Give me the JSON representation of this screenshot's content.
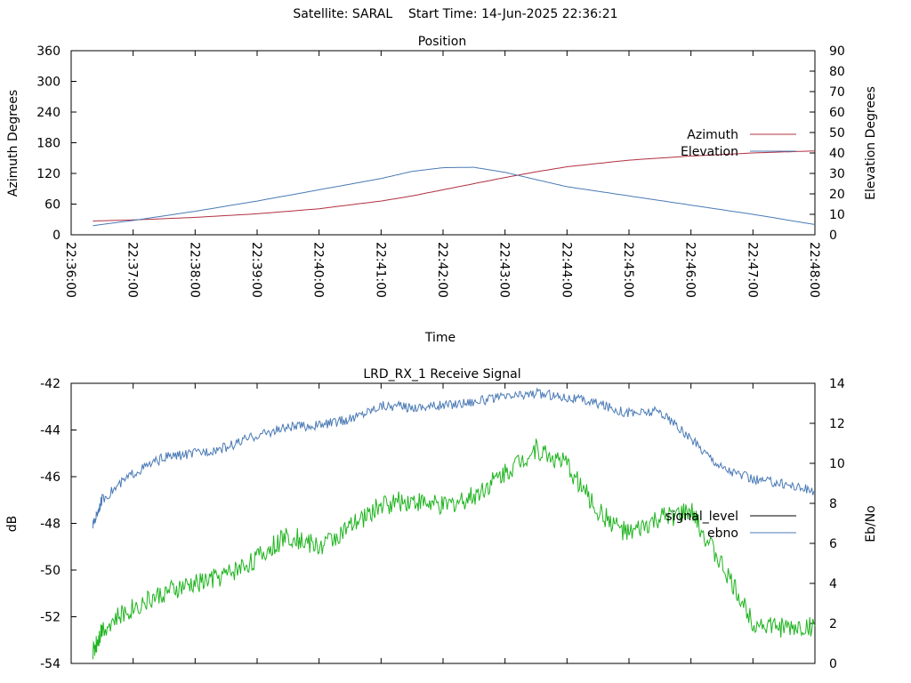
{
  "header": {
    "satellite": "Satellite: SARAL",
    "start_time": "Start Time: 14-Jun-2025 22:36:21"
  },
  "colors": {
    "azimuth": "#b03040",
    "elevation": "#4a7ab5",
    "signal_level": "#1fb41f",
    "signal_level_legend": "#000000",
    "ebno": "#4a7ab5",
    "axis": "#000000"
  },
  "chart_data": [
    {
      "type": "line",
      "title": "Position",
      "xlabel": "Time",
      "ylabel": "Azimuth Degrees",
      "y2label": "Elevation Degrees",
      "xlim": [
        "22:36:00",
        "22:48:00"
      ],
      "x_ticks": [
        "22:36:00",
        "22:37:00",
        "22:38:00",
        "22:39:00",
        "22:40:00",
        "22:41:00",
        "22:42:00",
        "22:43:00",
        "22:44:00",
        "22:45:00",
        "22:46:00",
        "22:47:00",
        "22:48:00"
      ],
      "ylim": [
        0,
        360
      ],
      "y_ticks": [
        0,
        60,
        120,
        180,
        240,
        300,
        360
      ],
      "y2lim": [
        0,
        90
      ],
      "y2_ticks": [
        0,
        10,
        20,
        30,
        40,
        50,
        60,
        70,
        80,
        90
      ],
      "legend_position": "right",
      "series": [
        {
          "name": "Azimuth",
          "axis": "y",
          "x": [
            "22:36:21",
            "22:37:00",
            "22:38:00",
            "22:39:00",
            "22:40:00",
            "22:41:00",
            "22:41:30",
            "22:42:00",
            "22:42:30",
            "22:43:00",
            "22:43:30",
            "22:44:00",
            "22:45:00",
            "22:46:00",
            "22:47:00",
            "22:48:00"
          ],
          "values": [
            27,
            29,
            34,
            41,
            51,
            66,
            76,
            88,
            100,
            112,
            123,
            133,
            146,
            154,
            160,
            164
          ]
        },
        {
          "name": "Elevation",
          "axis": "y2",
          "x": [
            "22:36:21",
            "22:37:00",
            "22:38:00",
            "22:39:00",
            "22:40:00",
            "22:41:00",
            "22:41:30",
            "22:42:00",
            "22:42:30",
            "22:43:00",
            "22:43:30",
            "22:44:00",
            "22:45:00",
            "22:46:00",
            "22:47:00",
            "22:48:00"
          ],
          "values": [
            4.5,
            7,
            11.5,
            16.5,
            22,
            27.5,
            31,
            32.8,
            33,
            30.5,
            27,
            23.5,
            19,
            14.5,
            10,
            5
          ]
        }
      ]
    },
    {
      "type": "line",
      "title": "LRD_RX_1 Receive Signal",
      "ylabel": "dB",
      "y2label": "Eb/No",
      "xlim": [
        "22:36:00",
        "22:48:00"
      ],
      "ylim": [
        -54,
        -42
      ],
      "y_ticks": [
        -54,
        -52,
        -50,
        -48,
        -46,
        -44,
        -42
      ],
      "y2lim": [
        0,
        14
      ],
      "y2_ticks": [
        0,
        2,
        4,
        6,
        8,
        10,
        12,
        14
      ],
      "legend_position": "right",
      "series": [
        {
          "name": "signal_level",
          "axis": "y",
          "x": [
            "22:36:21",
            "22:36:30",
            "22:37:00",
            "22:37:30",
            "22:38:00",
            "22:38:30",
            "22:39:00",
            "22:39:30",
            "22:40:00",
            "22:40:30",
            "22:41:00",
            "22:41:30",
            "22:42:00",
            "22:42:30",
            "22:43:00",
            "22:43:30",
            "22:44:00",
            "22:44:30",
            "22:45:00",
            "22:45:30",
            "22:46:00",
            "22:46:30",
            "22:47:00",
            "22:47:30",
            "22:48:00"
          ],
          "values": [
            -53.5,
            -52.5,
            -51.6,
            -51.0,
            -50.6,
            -50.2,
            -49.5,
            -48.5,
            -49.0,
            -48.2,
            -47.2,
            -47.0,
            -47.3,
            -46.8,
            -45.8,
            -44.8,
            -45.5,
            -47.5,
            -48.5,
            -47.8,
            -47.5,
            -49.8,
            -52.2,
            -52.5,
            -52.4
          ]
        },
        {
          "name": "ebno",
          "axis": "y2",
          "x": [
            "22:36:21",
            "22:36:30",
            "22:37:00",
            "22:37:30",
            "22:38:00",
            "22:38:30",
            "22:39:00",
            "22:39:30",
            "22:40:00",
            "22:40:30",
            "22:41:00",
            "22:41:30",
            "22:42:00",
            "22:42:30",
            "22:43:00",
            "22:43:30",
            "22:44:00",
            "22:44:30",
            "22:45:00",
            "22:45:30",
            "22:46:00",
            "22:46:30",
            "22:47:00",
            "22:47:30",
            "22:48:00"
          ],
          "values": [
            6.9,
            8.2,
            9.5,
            10.3,
            10.5,
            10.8,
            11.4,
            11.8,
            11.9,
            12.2,
            12.9,
            12.8,
            12.9,
            13.1,
            13.3,
            13.5,
            13.3,
            13.0,
            12.5,
            12.6,
            11.2,
            9.8,
            9.2,
            9.0,
            8.6
          ]
        }
      ]
    }
  ]
}
